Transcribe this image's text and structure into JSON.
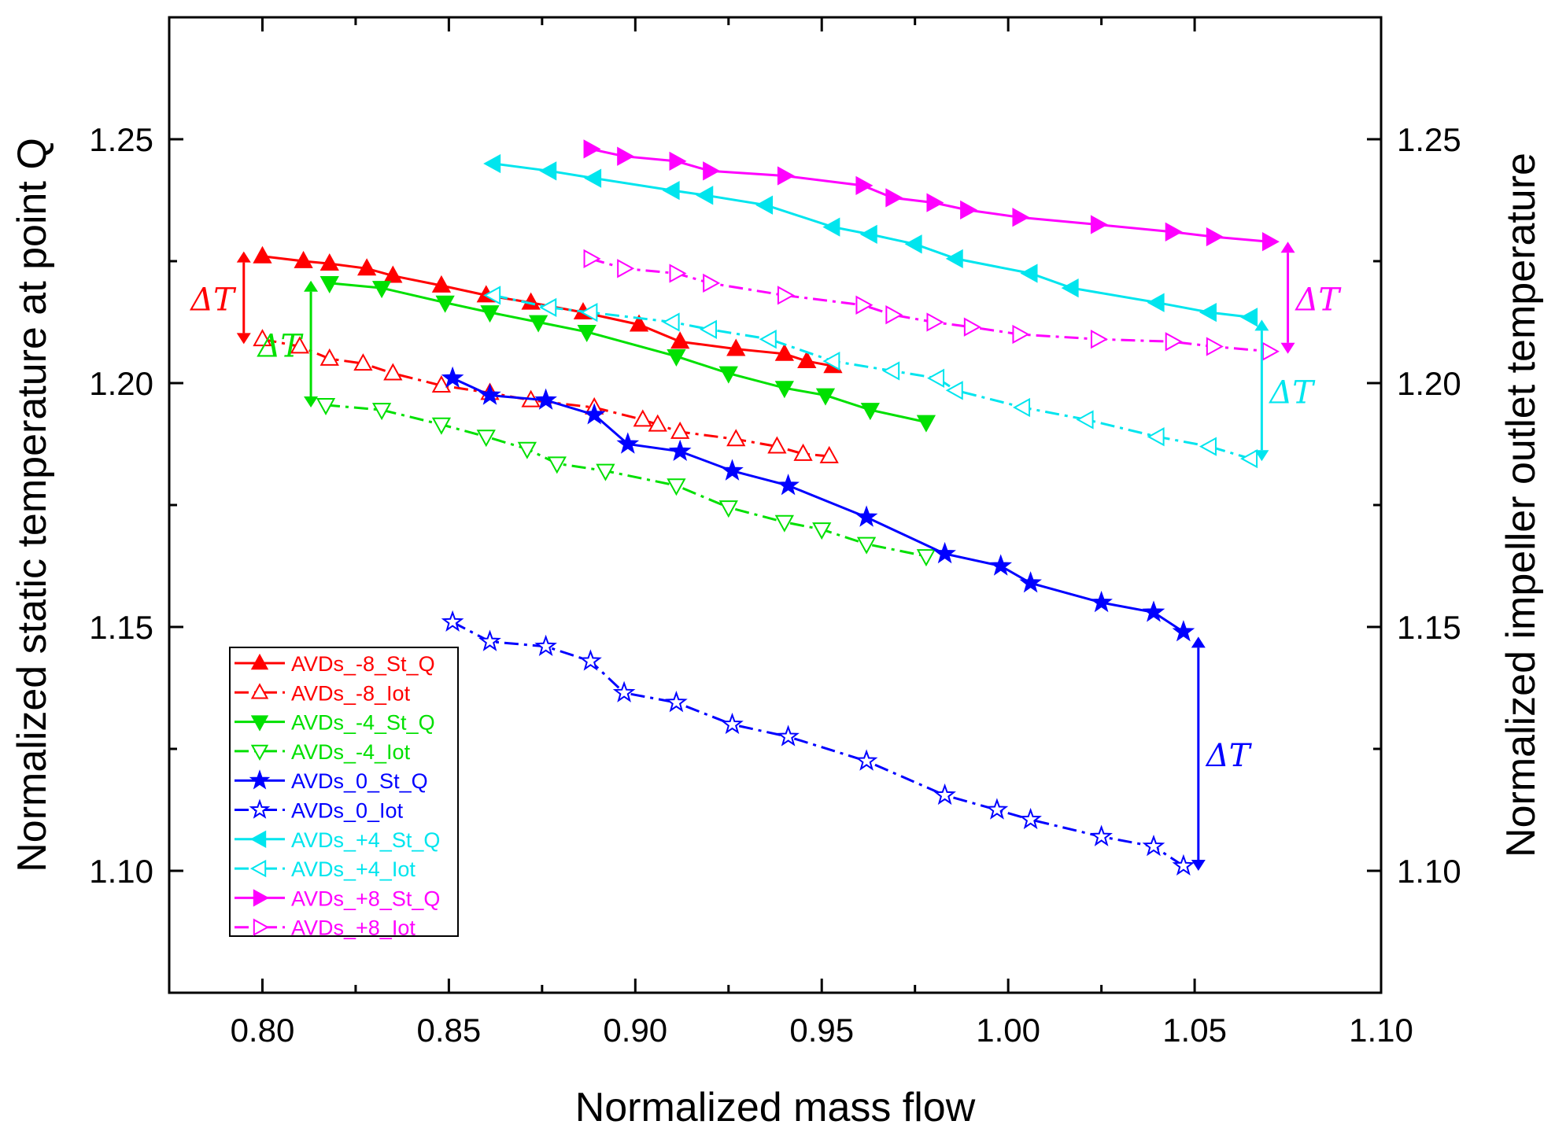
{
  "chart_data": {
    "type": "line",
    "xlabel": "Normalized mass flow",
    "ylabel": "Normalized static temperature at point Q",
    "y2label": "Normalized impeller outlet temperature",
    "xlim": [
      0.775,
      1.1
    ],
    "ylim": [
      1.075,
      1.275
    ],
    "x_ticks": [
      0.8,
      0.85,
      0.9,
      0.95,
      1.0,
      1.05,
      1.1
    ],
    "x_tick_labels": [
      "0.80",
      "0.85",
      "0.90",
      "0.95",
      "1.00",
      "1.05",
      "1.10"
    ],
    "y_ticks": [
      1.1,
      1.15,
      1.2,
      1.25
    ],
    "y_tick_labels": [
      "1.10",
      "1.15",
      "1.20",
      "1.25"
    ],
    "y2_tick_labels": [
      "1.10",
      "1.15",
      "1.20",
      "1.25"
    ],
    "grid": false,
    "legend_position": "bottom-left",
    "series": [
      {
        "name": "AVDs_-8_St_Q",
        "color": "#ff0000",
        "marker": "triangle-up",
        "filled": true,
        "dash": "solid",
        "x": [
          0.8,
          0.811,
          0.818,
          0.828,
          0.835,
          0.848,
          0.86,
          0.872,
          0.886,
          0.901,
          0.912,
          0.927,
          0.94,
          0.946,
          0.953
        ],
        "y": [
          1.226,
          1.225,
          1.2245,
          1.2235,
          1.222,
          1.22,
          1.218,
          1.2165,
          1.2145,
          1.212,
          1.2085,
          1.207,
          1.206,
          1.2045,
          1.2035
        ]
      },
      {
        "name": "AVDs_-8_Iot",
        "color": "#ff0000",
        "marker": "triangle-up",
        "filled": false,
        "dash": "dashdot",
        "x": [
          0.8,
          0.81,
          0.818,
          0.827,
          0.835,
          0.848,
          0.861,
          0.872,
          0.889,
          0.902,
          0.906,
          0.912,
          0.927,
          0.938,
          0.945,
          0.952
        ],
        "y": [
          1.209,
          1.2075,
          1.205,
          1.204,
          1.202,
          1.1995,
          1.198,
          1.1965,
          1.195,
          1.1925,
          1.1915,
          1.19,
          1.1885,
          1.187,
          1.1855,
          1.185
        ]
      },
      {
        "name": "AVDs_-4_St_Q",
        "color": "#00e000",
        "marker": "triangle-down",
        "filled": true,
        "dash": "solid",
        "x": [
          0.818,
          0.832,
          0.849,
          0.861,
          0.874,
          0.887,
          0.911,
          0.925,
          0.94,
          0.951,
          0.963,
          0.978
        ],
        "y": [
          1.2205,
          1.2195,
          1.2165,
          1.2145,
          1.2125,
          1.2105,
          1.2055,
          1.202,
          1.199,
          1.1975,
          1.1945,
          1.192
        ]
      },
      {
        "name": "AVDs_-4_Iot",
        "color": "#00e000",
        "marker": "triangle-down",
        "filled": false,
        "dash": "dashdot",
        "x": [
          0.817,
          0.832,
          0.848,
          0.86,
          0.871,
          0.879,
          0.892,
          0.911,
          0.925,
          0.94,
          0.95,
          0.962,
          0.978
        ],
        "y": [
          1.1955,
          1.1945,
          1.1915,
          1.189,
          1.1865,
          1.1835,
          1.182,
          1.179,
          1.1745,
          1.1715,
          1.17,
          1.167,
          1.1645
        ]
      },
      {
        "name": "AVDs_0_St_Q",
        "color": "#0000ff",
        "marker": "star",
        "filled": true,
        "dash": "solid",
        "x": [
          0.851,
          0.861,
          0.876,
          0.889,
          0.898,
          0.912,
          0.926,
          0.941,
          0.962,
          0.983,
          0.998,
          1.006,
          1.025,
          1.039,
          1.047
        ],
        "y": [
          1.201,
          1.1975,
          1.1965,
          1.1935,
          1.1875,
          1.186,
          1.182,
          1.179,
          1.1725,
          1.165,
          1.1625,
          1.159,
          1.155,
          1.153,
          1.149
        ]
      },
      {
        "name": "AVDs_0_Iot",
        "color": "#0000ff",
        "marker": "star",
        "filled": false,
        "dash": "dashdot",
        "x": [
          0.851,
          0.861,
          0.876,
          0.888,
          0.897,
          0.911,
          0.926,
          0.941,
          0.962,
          0.983,
          0.997,
          1.006,
          1.025,
          1.039,
          1.047
        ],
        "y": [
          1.151,
          1.147,
          1.146,
          1.143,
          1.1365,
          1.1345,
          1.13,
          1.1275,
          1.1225,
          1.1155,
          1.1125,
          1.1105,
          1.107,
          1.105,
          1.101
        ]
      },
      {
        "name": "AVDs_+4_St_Q",
        "color": "#00e5ee",
        "marker": "triangle-left",
        "filled": true,
        "dash": "solid",
        "x": [
          0.862,
          0.877,
          0.889,
          0.91,
          0.919,
          0.935,
          0.953,
          0.963,
          0.975,
          0.986,
          1.006,
          1.017,
          1.04,
          1.054,
          1.065
        ],
        "y": [
          1.245,
          1.2435,
          1.242,
          1.2395,
          1.2385,
          1.2365,
          1.232,
          1.2305,
          1.2285,
          1.2255,
          1.2225,
          1.2195,
          1.2165,
          1.2145,
          1.2135
        ]
      },
      {
        "name": "AVDs_+4_Iot",
        "color": "#00e5ee",
        "marker": "triangle-left",
        "filled": false,
        "dash": "dashdot",
        "x": [
          0.862,
          0.877,
          0.888,
          0.91,
          0.92,
          0.936,
          0.953,
          0.969,
          0.981,
          0.986,
          1.004,
          1.021,
          1.04,
          1.054,
          1.065
        ],
        "y": [
          1.218,
          1.2155,
          1.2145,
          1.2125,
          1.211,
          1.209,
          1.2045,
          1.2025,
          1.201,
          1.1985,
          1.195,
          1.1925,
          1.189,
          1.187,
          1.1845
        ]
      },
      {
        "name": "AVDs_+8_St_Q",
        "color": "#ff00ff",
        "marker": "triangle-right",
        "filled": true,
        "dash": "solid",
        "x": [
          0.888,
          0.897,
          0.911,
          0.92,
          0.94,
          0.961,
          0.969,
          0.98,
          0.989,
          1.003,
          1.024,
          1.044,
          1.055,
          1.07
        ],
        "y": [
          1.248,
          1.2465,
          1.2455,
          1.2435,
          1.2425,
          1.2405,
          1.238,
          1.237,
          1.2355,
          1.234,
          1.2325,
          1.231,
          1.23,
          1.229
        ]
      },
      {
        "name": "AVDs_+8_Iot",
        "color": "#ff00ff",
        "marker": "triangle-right",
        "filled": false,
        "dash": "dashdot",
        "x": [
          0.888,
          0.897,
          0.911,
          0.92,
          0.94,
          0.961,
          0.969,
          0.98,
          0.99,
          1.003,
          1.024,
          1.044,
          1.055,
          1.07
        ],
        "y": [
          1.2255,
          1.2235,
          1.2225,
          1.2205,
          1.218,
          1.216,
          1.214,
          1.2125,
          1.2115,
          1.21,
          1.209,
          1.2085,
          1.2075,
          1.2065
        ]
      }
    ],
    "annotations": [
      {
        "label": "ΔT",
        "color": "#ff0000",
        "x": 0.795,
        "y_from": 1.227,
        "y_to": 1.208,
        "label_side": "left"
      },
      {
        "label": "ΔT",
        "color": "#00e000",
        "x": 0.813,
        "y_from": 1.221,
        "y_to": 1.195,
        "label_side": "left"
      },
      {
        "label": "ΔT",
        "color": "#0000ff",
        "x": 1.051,
        "y_from": 1.148,
        "y_to": 1.1,
        "label_side": "right"
      },
      {
        "label": "ΔT",
        "color": "#00e5ee",
        "x": 1.068,
        "y_from": 1.213,
        "y_to": 1.184,
        "label_side": "right"
      },
      {
        "label": "ΔT",
        "color": "#ff00ff",
        "x": 1.075,
        "y_from": 1.229,
        "y_to": 1.206,
        "label_side": "right"
      }
    ]
  }
}
